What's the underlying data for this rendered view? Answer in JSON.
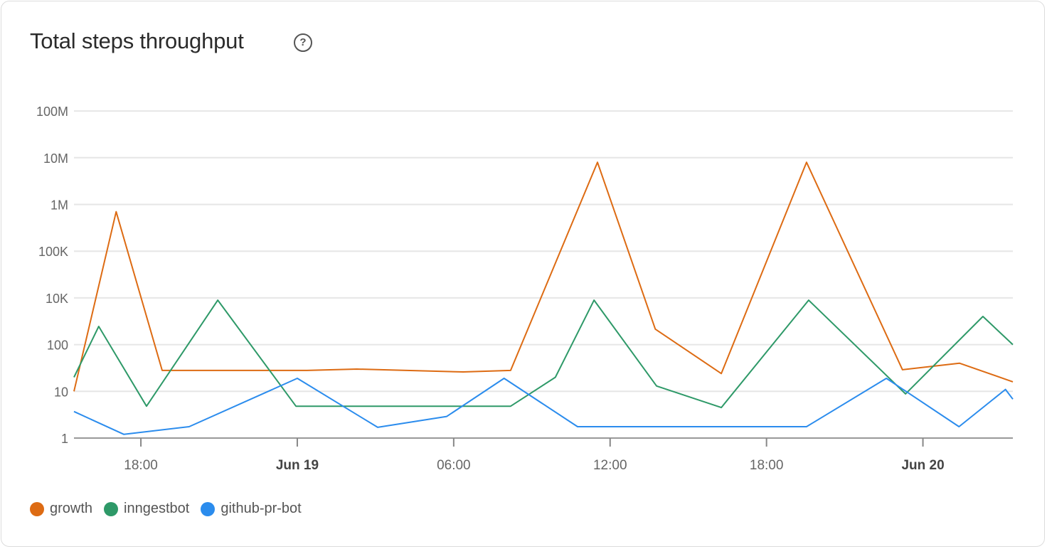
{
  "card": {
    "title": "Total steps throughput",
    "help_icon": "question-circle-icon"
  },
  "chart_data": {
    "type": "line",
    "title": "Total steps throughput",
    "xlabel": "",
    "ylabel": "",
    "y_scale": "log",
    "y_ticks": [
      {
        "value": 1,
        "label": "1"
      },
      {
        "value": 10,
        "label": "10"
      },
      {
        "value": 100,
        "label": "100"
      },
      {
        "value": 10000,
        "label": "10K"
      },
      {
        "value": 100000,
        "label": "100K"
      },
      {
        "value": 1000000,
        "label": "1M"
      },
      {
        "value": 10000000,
        "label": "10M"
      },
      {
        "value": 100000000,
        "label": "100M"
      }
    ],
    "x_range": [
      "Jun 18 15:26",
      "Jun 20 03:27"
    ],
    "x_ticks": [
      {
        "time": "Jun 18 18:00",
        "label": "18:00",
        "bold": false
      },
      {
        "time": "Jun 19 00:00",
        "label": "Jun 19",
        "bold": true
      },
      {
        "time": "Jun 19 06:00",
        "label": "06:00",
        "bold": false
      },
      {
        "time": "Jun 19 12:00",
        "label": "12:00",
        "bold": false
      },
      {
        "time": "Jun 19 18:00",
        "label": "18:00",
        "bold": false
      },
      {
        "time": "Jun 20 00:00",
        "label": "Jun 20",
        "bold": true
      }
    ],
    "grid": true,
    "legend_position": "bottom-left",
    "series": [
      {
        "name": "growth",
        "color": "#dd6b13",
        "points": [
          [
            "Jun 18 15:26",
            10
          ],
          [
            "Jun 18 17:03",
            700000
          ],
          [
            "Jun 18 18:49",
            28
          ],
          [
            "Jun 19 00:22",
            28
          ],
          [
            "Jun 19 02:17",
            30
          ],
          [
            "Jun 19 06:22",
            26
          ],
          [
            "Jun 19 08:11",
            28
          ],
          [
            "Jun 19 11:31",
            8000000
          ],
          [
            "Jun 19 13:44",
            460
          ],
          [
            "Jun 19 16:16",
            24
          ],
          [
            "Jun 19 19:32",
            8000000
          ],
          [
            "Jun 19 23:13",
            29
          ],
          [
            "Jun 20 01:24",
            40
          ],
          [
            "Jun 20 03:27",
            16
          ]
        ]
      },
      {
        "name": "inngestbot",
        "color": "#2e9968",
        "points": [
          [
            "Jun 18 15:26",
            20
          ],
          [
            "Jun 18 16:23",
            600
          ],
          [
            "Jun 18 18:13",
            4.8
          ],
          [
            "Jun 18 20:57",
            8000
          ],
          [
            "Jun 18 23:57",
            4.8
          ],
          [
            "Jun 19 08:11",
            4.8
          ],
          [
            "Jun 19 09:54",
            20
          ],
          [
            "Jun 19 11:23",
            8000
          ],
          [
            "Jun 19 13:47",
            13
          ],
          [
            "Jun 19 16:16",
            4.5
          ],
          [
            "Jun 19 19:37",
            8000
          ],
          [
            "Jun 19 23:20",
            8.8
          ],
          [
            "Jun 20 02:18",
            1600
          ],
          [
            "Jun 20 03:27",
            100
          ]
        ]
      },
      {
        "name": "github-pr-bot",
        "color": "#2b8ced",
        "points": [
          [
            "Jun 18 15:26",
            3.7
          ],
          [
            "Jun 18 17:21",
            1.2
          ],
          [
            "Jun 18 19:51",
            1.75
          ],
          [
            "Jun 19 00:00",
            19
          ],
          [
            "Jun 19 03:05",
            1.7
          ],
          [
            "Jun 19 05:44",
            2.9
          ],
          [
            "Jun 19 07:56",
            19
          ],
          [
            "Jun 19 10:45",
            1.75
          ],
          [
            "Jun 19 19:32",
            1.75
          ],
          [
            "Jun 19 22:36",
            19
          ],
          [
            "Jun 20 01:23",
            1.75
          ],
          [
            "Jun 20 03:10",
            11
          ],
          [
            "Jun 20 03:27",
            6.8
          ]
        ]
      }
    ]
  }
}
